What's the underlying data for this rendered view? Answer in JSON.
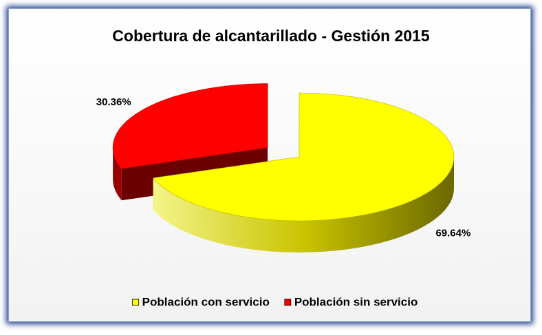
{
  "chart_data": {
    "type": "pie",
    "title": "Cobertura de alcantarillado - Gestión 2015",
    "categories": [
      "Población con servicio",
      "Población sin servicio"
    ],
    "values": [
      69.64,
      30.36
    ],
    "value_labels": [
      "69.64%",
      "30.36%"
    ],
    "colors": [
      "#ffff00",
      "#ff0000"
    ],
    "legend": "bottom"
  }
}
